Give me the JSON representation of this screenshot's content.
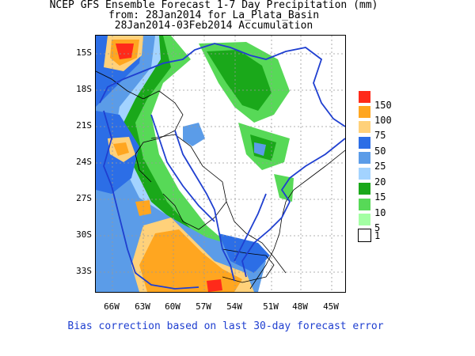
{
  "title": {
    "line1": "NCEP GFS Ensemble Forecast 1-7 Day Precipitation (mm)",
    "line2": "from: 28Jan2014   for La_Plata_Basin",
    "line3": "28Jan2014-03Feb2014 Accumulation"
  },
  "axes": {
    "lat_labels": [
      "15S",
      "18S",
      "21S",
      "24S",
      "27S",
      "30S",
      "33S"
    ],
    "lon_labels": [
      "66W",
      "63W",
      "60W",
      "57W",
      "54W",
      "51W",
      "48W",
      "45W"
    ]
  },
  "legend": {
    "levels": [
      "150",
      "100",
      "75",
      "50",
      "25",
      "20",
      "15",
      "10",
      "5",
      "1"
    ],
    "colors": [
      "#ff2a1a",
      "#ffa620",
      "#ffd17a",
      "#2c6ee6",
      "#5b9ce8",
      "#a3d3ff",
      "#1aa81a",
      "#57d957",
      "#a3ffa3",
      "#ffffff"
    ]
  },
  "footnote": "Bias correction based on last 30-day forecast error",
  "colors": {
    "basin_outline": "#1f3fd0",
    "borders": "#000000",
    "footnote_text": "#1f3fd0"
  }
}
